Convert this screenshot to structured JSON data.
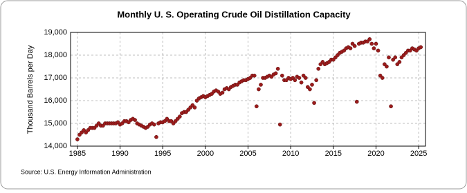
{
  "chart_data": {
    "type": "scatter",
    "title": "Monthly U. S. Operating Crude Oil Distillation Capacity",
    "y_label": "Thousand Barrels per Day",
    "source": "Source: U.S. Energy Information Administration",
    "xlim": [
      1984.2,
      2025.8
    ],
    "xticks": [
      1985,
      1990,
      1995,
      2000,
      2005,
      2010,
      2015,
      2020,
      2025
    ],
    "ylim": [
      14000,
      19000
    ],
    "yticks": [
      {
        "value": 14000,
        "label": "14,000"
      },
      {
        "value": 15000,
        "label": "15,000"
      },
      {
        "value": 16000,
        "label": "16,000"
      },
      {
        "value": 17000,
        "label": "17,000"
      },
      {
        "value": 18000,
        "label": "18,000"
      },
      {
        "value": 19000,
        "label": "19,000"
      }
    ],
    "grid": true,
    "series": [
      {
        "color": "#9b1c1c",
        "x": [
          1985,
          1985.25,
          1985.5,
          1985.75,
          1986,
          1986.25,
          1986.5,
          1986.75,
          1987,
          1987.25,
          1987.5,
          1987.75,
          1988,
          1988.25,
          1988.5,
          1988.75,
          1989,
          1989.25,
          1989.5,
          1989.75,
          1990,
          1990.25,
          1990.5,
          1990.75,
          1991,
          1991.25,
          1991.5,
          1991.75,
          1992,
          1992.25,
          1992.5,
          1992.75,
          1993,
          1993.25,
          1993.5,
          1993.75,
          1994,
          1994.25,
          1994.5,
          1994.75,
          1995,
          1995.25,
          1995.5,
          1995.75,
          1996,
          1996.25,
          1996.5,
          1996.75,
          1997,
          1997.25,
          1997.5,
          1997.75,
          1998,
          1998.25,
          1998.5,
          1998.75,
          1999,
          1999.25,
          1999.5,
          1999.75,
          2000,
          2000.25,
          2000.5,
          2000.75,
          2001,
          2001.25,
          2001.5,
          2001.75,
          2002,
          2002.25,
          2002.5,
          2002.75,
          2003,
          2003.25,
          2003.5,
          2003.75,
          2004,
          2004.25,
          2004.5,
          2004.75,
          2005,
          2005.25,
          2005.5,
          2005.75,
          2006,
          2006.25,
          2006.5,
          2006.75,
          2007,
          2007.25,
          2007.5,
          2007.75,
          2008,
          2008.25,
          2008.5,
          2008.75,
          2009,
          2009.25,
          2009.5,
          2009.75,
          2010,
          2010.25,
          2010.5,
          2010.75,
          2011,
          2011.25,
          2011.5,
          2011.75,
          2012,
          2012.25,
          2012.5,
          2012.75,
          2013,
          2013.25,
          2013.5,
          2013.75,
          2014,
          2014.25,
          2014.5,
          2014.75,
          2015,
          2015.25,
          2015.5,
          2015.75,
          2016,
          2016.25,
          2016.5,
          2016.75,
          2017,
          2017.25,
          2017.5,
          2017.75,
          2018,
          2018.25,
          2018.5,
          2018.75,
          2019,
          2019.25,
          2019.5,
          2019.75,
          2020,
          2020.25,
          2020.5,
          2020.75,
          2021,
          2021.25,
          2021.5,
          2021.75,
          2022,
          2022.25,
          2022.5,
          2022.75,
          2023,
          2023.25,
          2023.5,
          2023.75,
          2024,
          2024.25,
          2024.5,
          2024.75,
          2025,
          2025.25
        ],
        "values": [
          14300,
          14500,
          14600,
          14700,
          14600,
          14700,
          14800,
          14800,
          14800,
          14900,
          15000,
          14900,
          14900,
          15000,
          15000,
          15000,
          15000,
          15000,
          15000,
          15050,
          14950,
          15000,
          15100,
          15100,
          15050,
          15150,
          15200,
          15150,
          15000,
          14950,
          14900,
          14850,
          14800,
          14850,
          14950,
          15000,
          14950,
          14400,
          15000,
          15050,
          15050,
          15100,
          15200,
          15100,
          15100,
          15000,
          15100,
          15200,
          15300,
          15450,
          15500,
          15500,
          15600,
          15700,
          15800,
          15700,
          16000,
          16100,
          16150,
          16200,
          16150,
          16200,
          16250,
          16300,
          16400,
          16450,
          16400,
          16300,
          16350,
          16500,
          16550,
          16500,
          16600,
          16650,
          16700,
          16700,
          16800,
          16850,
          16900,
          16900,
          16950,
          17000,
          17100,
          17100,
          15750,
          16500,
          16700,
          17000,
          17000,
          17050,
          17100,
          17050,
          17150,
          17200,
          17400,
          14950,
          17100,
          16900,
          16900,
          17000,
          16950,
          17000,
          16900,
          17050,
          17000,
          16800,
          17100,
          17000,
          16600,
          16500,
          16700,
          15900,
          16900,
          17400,
          17600,
          17700,
          17600,
          17650,
          17700,
          17800,
          17800,
          17900,
          18000,
          18100,
          18150,
          18200,
          18300,
          18350,
          18300,
          18500,
          18400,
          15950,
          18500,
          18550,
          18550,
          18600,
          18600,
          18700,
          18500,
          18300,
          18500,
          18200,
          17100,
          17000,
          17600,
          17500,
          17900,
          15750,
          17800,
          17900,
          17600,
          17700,
          17900,
          18000,
          18100,
          18200,
          18200,
          18300,
          18250,
          18200,
          18300,
          18350
        ]
      }
    ]
  }
}
